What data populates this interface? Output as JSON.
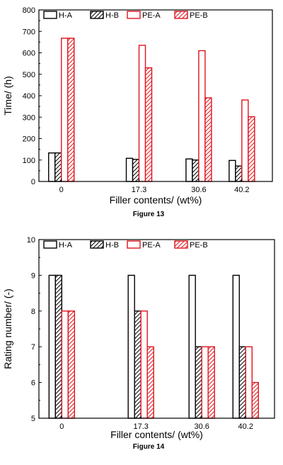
{
  "series_styles": [
    {
      "stroke": "#000000",
      "fill": "#ffffff",
      "hatch": false
    },
    {
      "stroke": "#000000",
      "fill": "#ffffff",
      "hatch": true
    },
    {
      "stroke": "#e0141e",
      "fill": "#ffffff",
      "hatch": false
    },
    {
      "stroke": "#e0141e",
      "fill": "#ffffff",
      "hatch": true
    }
  ],
  "chart_data": [
    {
      "type": "bar",
      "caption": "Figure 13",
      "categories": [
        "0",
        "17.3",
        "30.6",
        "40.2"
      ],
      "x": [
        0,
        17.3,
        30.6,
        40.2
      ],
      "series": [
        {
          "name": "H-A",
          "values": [
            133,
            108,
            105,
            98
          ]
        },
        {
          "name": "H-B",
          "values": [
            133,
            103,
            100,
            72
          ]
        },
        {
          "name": "PE-A",
          "values": [
            668,
            635,
            610,
            380
          ]
        },
        {
          "name": "PE-B",
          "values": [
            668,
            530,
            390,
            302
          ]
        }
      ],
      "xlabel": "Filler contents/ (wt%)",
      "ylabel": "Time/ (h)",
      "ylim": [
        0,
        800
      ],
      "yticks": [
        0,
        100,
        200,
        300,
        400,
        500,
        600,
        700,
        800
      ],
      "legend": "top"
    },
    {
      "type": "bar",
      "caption": "Figure 14",
      "categories": [
        "0",
        "17.3",
        "30.6",
        "40.2"
      ],
      "x": [
        0,
        17.3,
        30.6,
        40.2
      ],
      "series": [
        {
          "name": "H-A",
          "values": [
            9,
            9,
            9,
            9
          ]
        },
        {
          "name": "H-B",
          "values": [
            9,
            8,
            7,
            7
          ]
        },
        {
          "name": "PE-A",
          "values": [
            8,
            8,
            7,
            7
          ]
        },
        {
          "name": "PE-B",
          "values": [
            8,
            7,
            7,
            6
          ]
        }
      ],
      "xlabel": "Filler contents/ (wt%)",
      "ylabel": "Rating number/ (-)",
      "ylim": [
        5,
        10
      ],
      "yticks": [
        5,
        6,
        7,
        8,
        9,
        10
      ],
      "legend": "top"
    }
  ]
}
